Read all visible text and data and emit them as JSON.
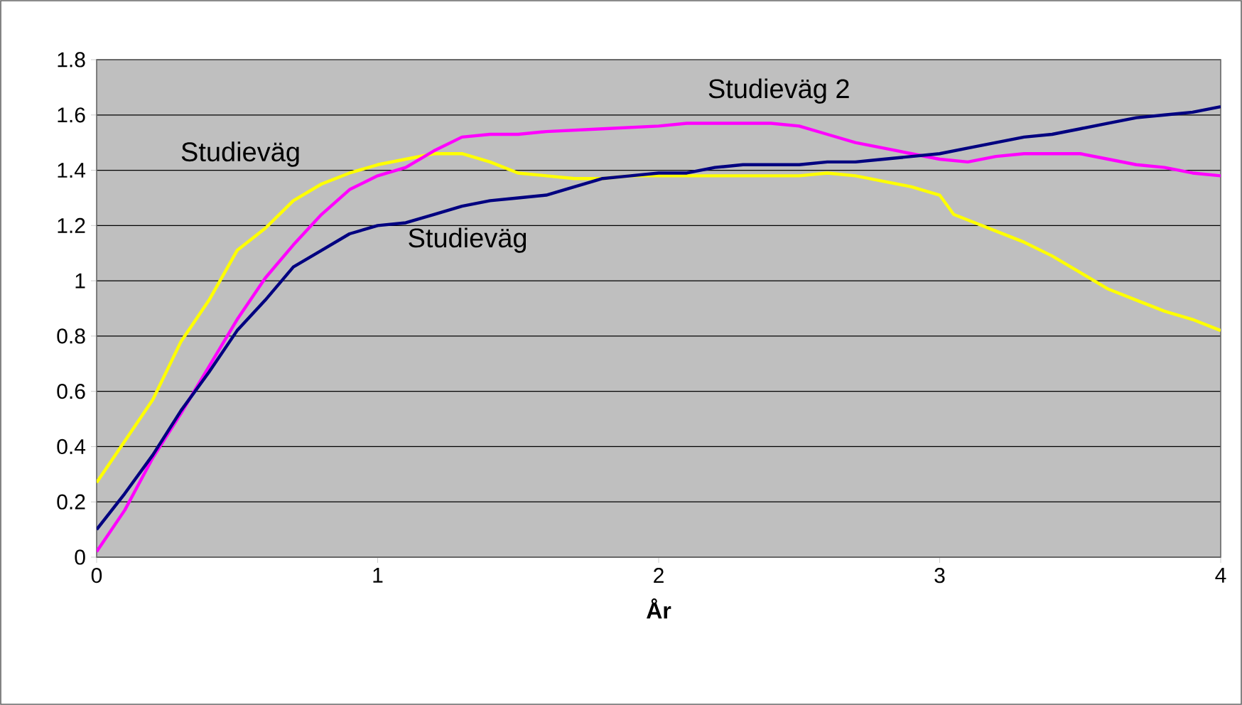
{
  "chart_data": {
    "type": "line",
    "xlabel": "År",
    "xlim": [
      0,
      4
    ],
    "ylim": [
      0,
      1.8
    ],
    "xticks": [
      0,
      1,
      2,
      3,
      4
    ],
    "yticks": [
      0,
      0.2,
      0.4,
      0.6,
      0.8,
      1,
      1.2,
      1.4,
      1.6,
      1.8
    ],
    "grid": "y",
    "marker": "none",
    "line_style": "solid",
    "series": [
      {
        "color": "#ffff00",
        "x": [
          0,
          0.1,
          0.2,
          0.3,
          0.4,
          0.5,
          0.6,
          0.7,
          0.8,
          0.9,
          1.0,
          1.1,
          1.2,
          1.3,
          1.4,
          1.5,
          1.6,
          1.7,
          1.8,
          1.9,
          2.0,
          2.2,
          2.5,
          2.6,
          2.7,
          2.8,
          2.9,
          3.0,
          3.05,
          3.1,
          3.2,
          3.3,
          3.4,
          3.5,
          3.6,
          3.7,
          3.8,
          3.9,
          4.0
        ],
        "values": [
          0.27,
          0.42,
          0.57,
          0.78,
          0.93,
          1.11,
          1.19,
          1.29,
          1.35,
          1.39,
          1.42,
          1.44,
          1.46,
          1.46,
          1.43,
          1.39,
          1.38,
          1.37,
          1.37,
          1.38,
          1.38,
          1.38,
          1.38,
          1.39,
          1.38,
          1.36,
          1.34,
          1.31,
          1.24,
          1.22,
          1.18,
          1.14,
          1.09,
          1.03,
          0.97,
          0.93,
          0.89,
          0.86,
          0.82
        ]
      },
      {
        "color": "#ff00ff",
        "x": [
          0,
          0.1,
          0.2,
          0.3,
          0.4,
          0.5,
          0.6,
          0.7,
          0.8,
          0.9,
          1.0,
          1.1,
          1.2,
          1.3,
          1.4,
          1.5,
          1.6,
          1.8,
          2.0,
          2.1,
          2.2,
          2.4,
          2.5,
          2.6,
          2.7,
          2.8,
          2.9,
          3.0,
          3.1,
          3.2,
          3.3,
          3.4,
          3.5,
          3.6,
          3.7,
          3.8,
          3.9,
          4.0
        ],
        "values": [
          0.02,
          0.17,
          0.36,
          0.52,
          0.69,
          0.86,
          1.01,
          1.13,
          1.24,
          1.33,
          1.38,
          1.41,
          1.47,
          1.52,
          1.53,
          1.53,
          1.54,
          1.55,
          1.56,
          1.57,
          1.57,
          1.57,
          1.56,
          1.53,
          1.5,
          1.48,
          1.46,
          1.44,
          1.43,
          1.45,
          1.46,
          1.46,
          1.46,
          1.44,
          1.42,
          1.41,
          1.39,
          1.38
        ]
      },
      {
        "color": "#000080",
        "x": [
          0,
          0.1,
          0.2,
          0.3,
          0.4,
          0.5,
          0.6,
          0.7,
          0.8,
          0.9,
          1.0,
          1.1,
          1.2,
          1.3,
          1.4,
          1.5,
          1.6,
          1.7,
          1.8,
          1.9,
          2.0,
          2.1,
          2.2,
          2.3,
          2.5,
          2.6,
          2.7,
          2.8,
          2.9,
          3.0,
          3.1,
          3.2,
          3.3,
          3.4,
          3.5,
          3.6,
          3.7,
          3.8,
          3.9,
          4.0
        ],
        "values": [
          0.1,
          0.23,
          0.37,
          0.53,
          0.67,
          0.82,
          0.93,
          1.05,
          1.11,
          1.17,
          1.2,
          1.21,
          1.24,
          1.27,
          1.29,
          1.3,
          1.31,
          1.34,
          1.37,
          1.38,
          1.39,
          1.39,
          1.41,
          1.42,
          1.42,
          1.43,
          1.43,
          1.44,
          1.45,
          1.46,
          1.48,
          1.5,
          1.52,
          1.53,
          1.55,
          1.57,
          1.59,
          1.6,
          1.61,
          1.63
        ]
      }
    ],
    "annotations": [
      "Studieväg",
      "Studieväg",
      "Studieväg 2"
    ]
  }
}
